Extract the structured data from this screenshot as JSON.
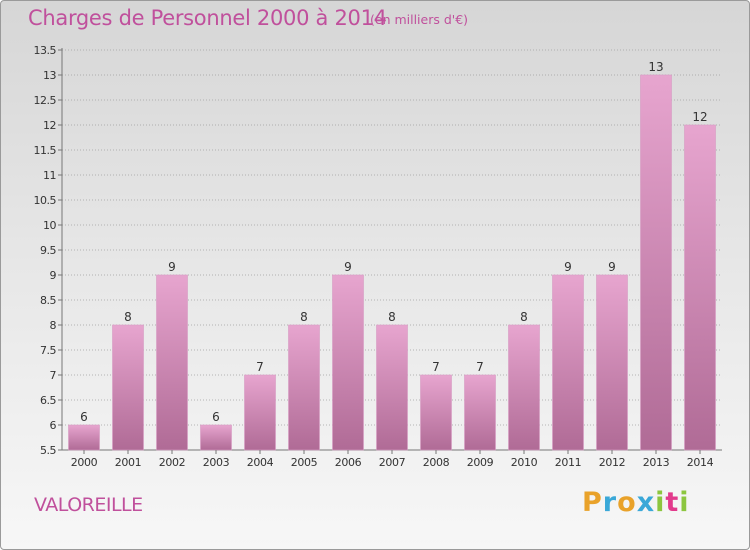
{
  "header": {
    "title": "Charges de Personnel 2000 à 2014",
    "subtitle": "(en milliers d'€)"
  },
  "footer": {
    "commune": "VALOREILLE",
    "brand": [
      "P",
      "r",
      "o",
      "x",
      "i",
      "t",
      "i"
    ],
    "brand_colors": [
      "#e9a22a",
      "#3aa8d8",
      "#e9a22a",
      "#3aa8d8",
      "#8cc63f",
      "#e23a8c",
      "#8cc63f"
    ]
  },
  "chart_data": {
    "type": "bar",
    "title": "Charges de Personnel 2000 à 2014",
    "subtitle": "(en milliers d'€)",
    "categories": [
      "2000",
      "2001",
      "2002",
      "2003",
      "2004",
      "2005",
      "2006",
      "2007",
      "2008",
      "2009",
      "2010",
      "2011",
      "2012",
      "2013",
      "2014"
    ],
    "values": [
      6,
      8,
      9,
      6,
      7,
      8,
      9,
      8,
      7,
      7,
      8,
      9,
      9,
      13,
      12
    ],
    "data_labels": [
      "6",
      "8",
      "9",
      "6",
      "7",
      "8",
      "9",
      "8",
      "7",
      "7",
      "8",
      "9",
      "9",
      "13",
      "12"
    ],
    "ylim": [
      5.5,
      13.5
    ],
    "yticks": [
      "5.5",
      "6",
      "6.5",
      "7",
      "7.5",
      "8",
      "8.5",
      "9",
      "9.5",
      "10",
      "10.5",
      "11",
      "11.5",
      "12",
      "12.5",
      "13",
      "13.5"
    ],
    "grid": true,
    "colors": {
      "bar_top": "#e7a5cf",
      "bar_bottom": "#b06b96",
      "label": "#c0509c",
      "grid": "#a0a0a0"
    }
  }
}
